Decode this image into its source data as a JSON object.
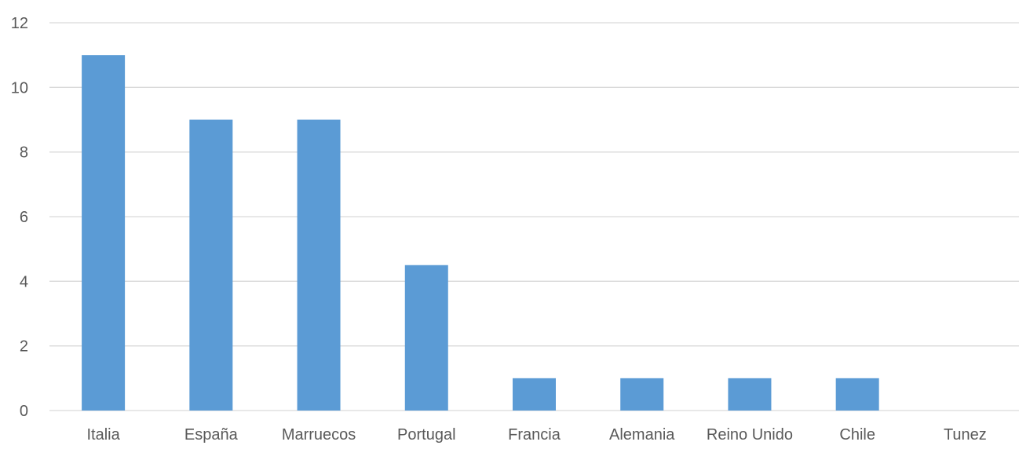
{
  "chart_data": {
    "type": "bar",
    "categories": [
      "Italia",
      "España",
      "Marruecos",
      "Portugal",
      "Francia",
      "Alemania",
      "Reino Unido",
      "Chile",
      "Tunez"
    ],
    "values": [
      11,
      9,
      9,
      4.5,
      1,
      1,
      1,
      1,
      0
    ],
    "ylim": [
      0,
      12
    ],
    "yticks": [
      "0",
      "2",
      "4",
      "6",
      "8",
      "10",
      "12"
    ],
    "grid": true,
    "bar_color": "#5b9bd5",
    "grid_color": "#d9d9d9",
    "text_color": "#595959"
  }
}
